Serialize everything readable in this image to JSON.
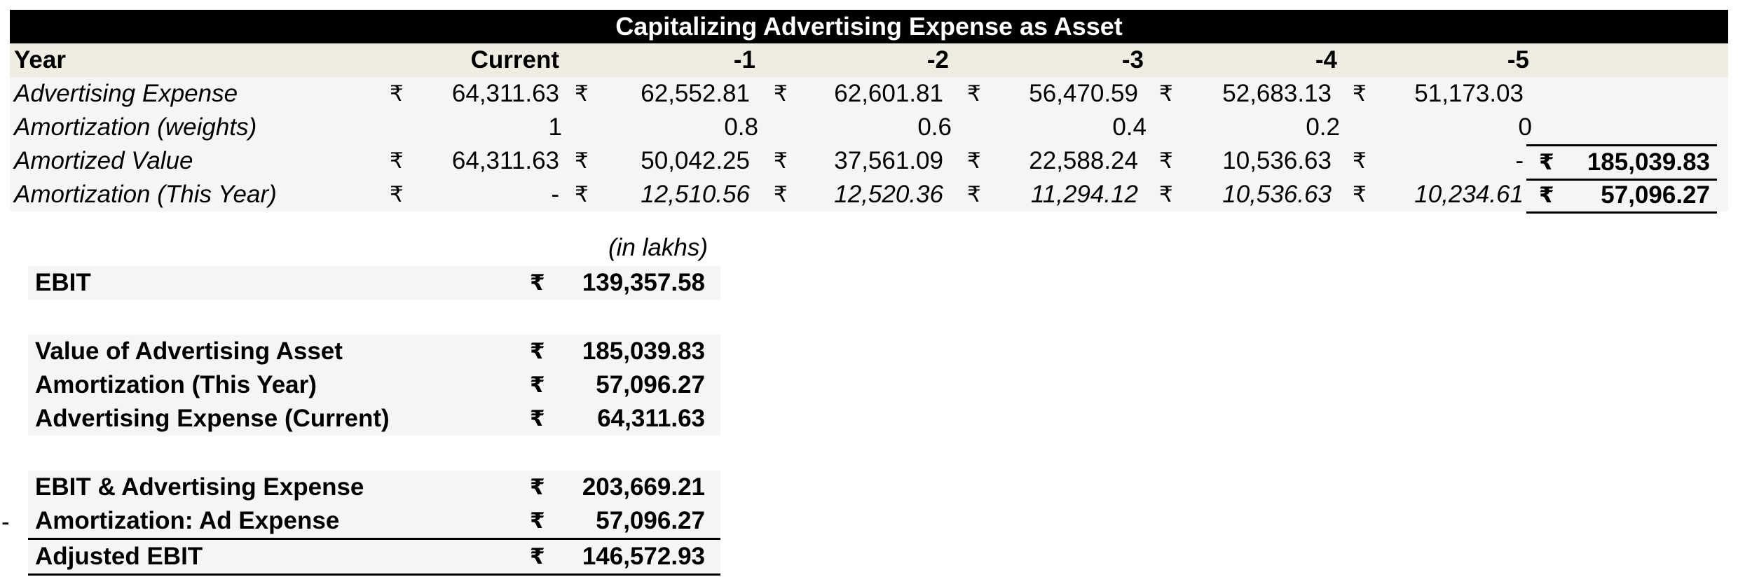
{
  "title": "Capitalizing Advertising Expense as Asset",
  "currency_symbol": "₹",
  "header": {
    "label": "Year",
    "columns": [
      "Current",
      "-1",
      "-2",
      "-3",
      "-4",
      "-5"
    ]
  },
  "rows": [
    {
      "label": "Advertising Expense",
      "values": [
        "64,311.63",
        "62,552.81",
        "62,601.81",
        "56,470.59",
        "52,683.13",
        "51,173.03"
      ],
      "currency": true,
      "italic_values": false
    },
    {
      "label": "Amortization (weights)",
      "values": [
        "1",
        "0.8",
        "0.6",
        "0.4",
        "0.2",
        "0"
      ],
      "currency": false,
      "italic_values": false
    },
    {
      "label": "Amortized Value",
      "values": [
        "64,311.63",
        "50,042.25",
        "37,561.09",
        "22,588.24",
        "10,536.63",
        "-"
      ],
      "currency": true,
      "italic_values": false,
      "total": "185,039.83"
    },
    {
      "label": "Amortization (This Year)",
      "values": [
        "-",
        "12,510.56",
        "12,520.36",
        "11,294.12",
        "10,536.63",
        "10,234.61"
      ],
      "currency": true,
      "italic_values": true,
      "total": "57,096.27"
    }
  ],
  "summary": {
    "unit_note": "(in lakhs)",
    "minus_sign": "-",
    "rows": [
      {
        "label": "EBIT",
        "value": "139,357.58"
      },
      {
        "label": "Value of Advertising Asset",
        "value": "185,039.83"
      },
      {
        "label": "Amortization (This Year)",
        "value": "57,096.27"
      },
      {
        "label": "Advertising Expense (Current)",
        "value": "64,311.63"
      },
      {
        "label": "EBIT & Advertising Expense",
        "value": "203,669.21"
      },
      {
        "label": "Amortization: Ad Expense",
        "value": "57,096.27"
      },
      {
        "label": "Adjusted EBIT",
        "value": "146,572.93"
      }
    ]
  }
}
